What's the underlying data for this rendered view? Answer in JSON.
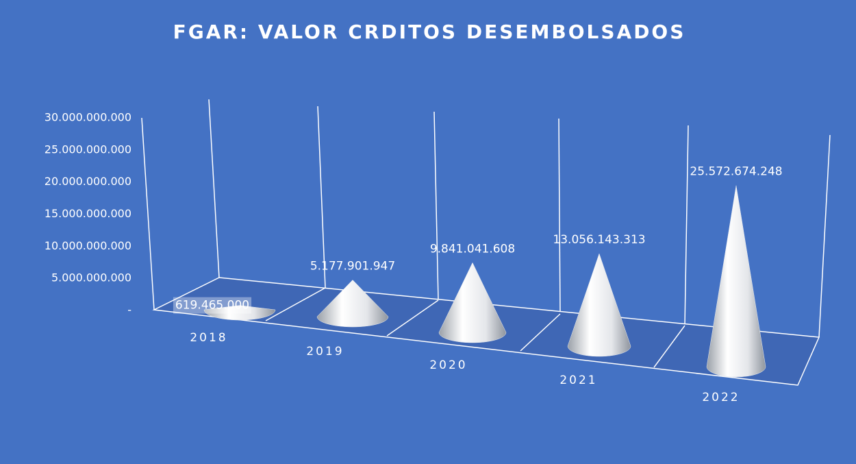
{
  "chart_data": {
    "type": "cone",
    "title": "FGAR: VALOR CRDITOS DESEMBOLSADOS",
    "categories": [
      "2018",
      "2019",
      "2020",
      "2021",
      "2022"
    ],
    "values": [
      619465000,
      5177901947,
      9841041608,
      13056143313,
      25572674248
    ],
    "value_labels": [
      "619.465.000",
      "5.177.901.947",
      "9.841.041.608",
      "13.056.143.313",
      "25.572.674.248"
    ],
    "color": "#e8eaee",
    "ylim": [
      0,
      30000000000
    ],
    "yticks": [
      {
        "value": 0,
        "label": "-"
      },
      {
        "value": 5000000000,
        "label": "5.000.000.000"
      },
      {
        "value": 10000000000,
        "label": "10.000.000.000"
      },
      {
        "value": 15000000000,
        "label": "15.000.000.000"
      },
      {
        "value": 20000000000,
        "label": "20.000.000.000"
      },
      {
        "value": 25000000000,
        "label": "25.000.000.000"
      },
      {
        "value": 30000000000,
        "label": "30.000.000.000"
      }
    ]
  }
}
